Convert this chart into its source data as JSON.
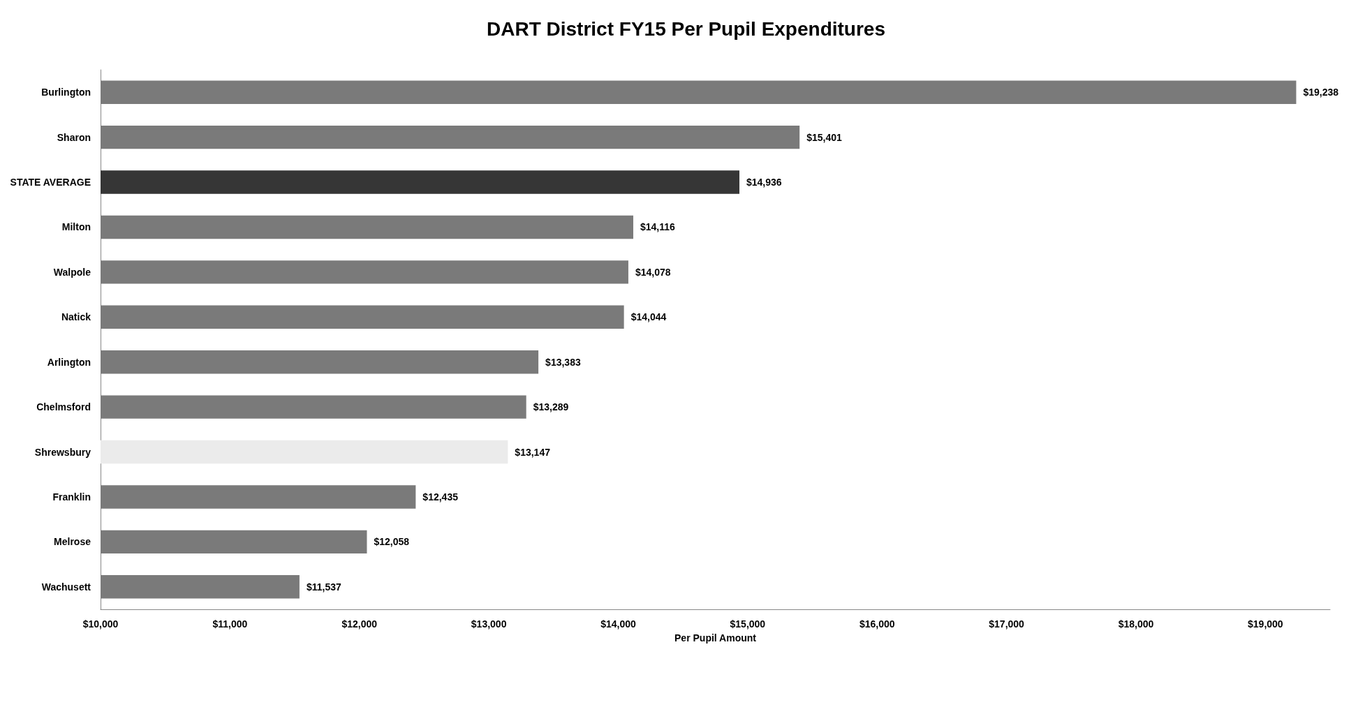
{
  "chart_data": {
    "type": "bar",
    "orientation": "horizontal",
    "title": "DART District FY15 Per Pupil Expenditures",
    "xlabel": "Per Pupil Amount",
    "categories": [
      "Burlington",
      "Sharon",
      "STATE AVERAGE",
      "Milton",
      "Walpole",
      "Natick",
      "Arlington",
      "Chelmsford",
      "Shrewsbury",
      "Franklin",
      "Melrose",
      "Wachusett"
    ],
    "values": [
      19238,
      15401,
      14936,
      14116,
      14078,
      14044,
      13383,
      13289,
      13147,
      12435,
      12058,
      11537
    ],
    "colors": [
      "#7a7a7a",
      "#7a7a7a",
      "#363636",
      "#7a7a7a",
      "#7a7a7a",
      "#7a7a7a",
      "#7a7a7a",
      "#7a7a7a",
      "#ebebeb",
      "#7a7a7a",
      "#7a7a7a",
      "#7a7a7a"
    ],
    "value_labels": [
      "$19,238",
      "$15,401",
      "$14,936",
      "$14,116",
      "$14,078",
      "$14,044",
      "$13,383",
      "$13,289",
      "$13,147",
      "$12,435",
      "$12,058",
      "$11,537"
    ],
    "xlim": [
      10000,
      19500
    ],
    "xticks": [
      {
        "value": 10000,
        "label": "$10,000"
      },
      {
        "value": 11000,
        "label": "$11,000"
      },
      {
        "value": 12000,
        "label": "$12,000"
      },
      {
        "value": 13000,
        "label": "$13,000"
      },
      {
        "value": 14000,
        "label": "$14,000"
      },
      {
        "value": 15000,
        "label": "$15,000"
      },
      {
        "value": 16000,
        "label": "$16,000"
      },
      {
        "value": 17000,
        "label": "$17,000"
      },
      {
        "value": 18000,
        "label": "$18,000"
      },
      {
        "value": 19000,
        "label": "$19,000"
      }
    ],
    "grid": false
  }
}
